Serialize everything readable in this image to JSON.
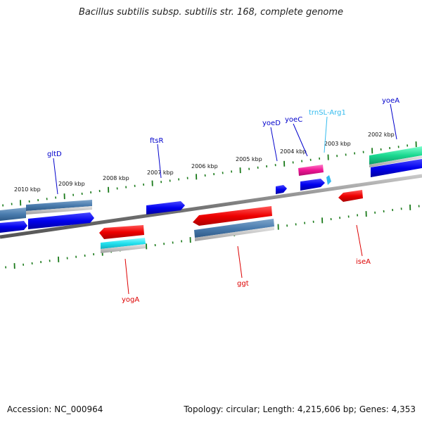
{
  "title": "Bacillus subtilis subsp. subtilis str. 168, complete genome",
  "footer": {
    "accession": "Accession: NC_000964",
    "summary": "Topology: circular; Length: 4,215,606 bp; Genes: 4,353"
  },
  "scale_labels": [
    "2010 kbp",
    "2009 kbp",
    "2008 kbp",
    "2007 kbp",
    "2006 kbp",
    "2005 kbp",
    "2004 kbp",
    "2003 kbp",
    "2002 kbp"
  ],
  "gene_labels": {
    "gltD": "gltD",
    "ftsR": "ftsR",
    "yoeD": "yoeD",
    "yoeC": "yoeC",
    "trnSL_Arg1": "trnSL-Arg1",
    "yoeA": "yoeA",
    "yogA": "yogA",
    "ggt": "ggt",
    "iseA": "iseA"
  },
  "colors": {
    "forward_label": "#0000cc",
    "reverse_label": "#dd0000",
    "rna_label": "#33bbee",
    "tick": "#1a7a1a",
    "backbone": "#888888"
  }
}
